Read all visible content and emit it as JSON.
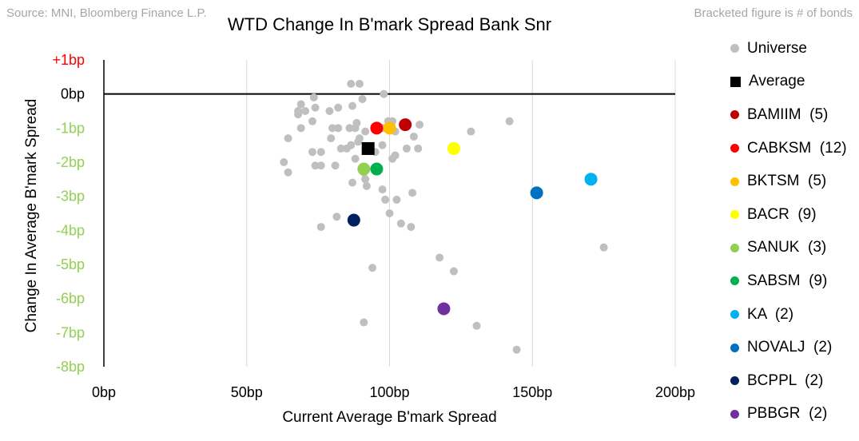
{
  "source_text": "Source: MNI, Bloomberg Finance L.P.",
  "note_text": "Bracketed figure is # of bonds",
  "chart_data": {
    "type": "scatter",
    "title": "WTD Change In B'mark Spread Bank Snr",
    "xlabel": "Current Average B'mark Spread",
    "ylabel": "Change In Average B'mark Spread",
    "xlim": [
      0,
      200
    ],
    "ylim": [
      -8,
      1
    ],
    "x_ticks": [
      {
        "value": 0,
        "label": "0bp"
      },
      {
        "value": 50,
        "label": "50bp"
      },
      {
        "value": 100,
        "label": "100bp"
      },
      {
        "value": 150,
        "label": "150bp"
      },
      {
        "value": 200,
        "label": "200bp"
      }
    ],
    "y_ticks": [
      {
        "value": 1,
        "label": "+1bp",
        "color": "#ff0000"
      },
      {
        "value": 0,
        "label": "0bp",
        "color": "#000000"
      },
      {
        "value": -1,
        "label": "-1bp",
        "color": "#92d050"
      },
      {
        "value": -2,
        "label": "-2bp",
        "color": "#92d050"
      },
      {
        "value": -3,
        "label": "-3bp",
        "color": "#92d050"
      },
      {
        "value": -4,
        "label": "-4bp",
        "color": "#92d050"
      },
      {
        "value": -5,
        "label": "-5bp",
        "color": "#92d050"
      },
      {
        "value": -6,
        "label": "-6bp",
        "color": "#92d050"
      },
      {
        "value": -7,
        "label": "-7bp",
        "color": "#92d050"
      },
      {
        "value": -8,
        "label": "-8bp",
        "color": "#92d050"
      }
    ],
    "grid": "vertical",
    "legend_position": "right",
    "series": [
      {
        "name": "Universe",
        "color": "#bfbfbf",
        "marker": "circle-small",
        "points": [
          [
            86.5,
            0.3
          ],
          [
            89.5,
            0.3
          ],
          [
            98,
            0
          ],
          [
            73.5,
            -0.1
          ],
          [
            69,
            -0.3
          ],
          [
            82,
            -0.4
          ],
          [
            87,
            -0.35
          ],
          [
            90.5,
            -0.15
          ],
          [
            68,
            -0.5
          ],
          [
            70.5,
            -0.5
          ],
          [
            74,
            -0.4
          ],
          [
            79,
            -0.5
          ],
          [
            68,
            -0.6
          ],
          [
            73,
            -0.8
          ],
          [
            88.5,
            -0.85
          ],
          [
            99.5,
            -0.8
          ],
          [
            101,
            -0.8
          ],
          [
            110.5,
            -0.9
          ],
          [
            142,
            -0.8
          ],
          [
            128.5,
            -1.1
          ],
          [
            69,
            -1
          ],
          [
            80,
            -1
          ],
          [
            82,
            -1
          ],
          [
            86,
            -1
          ],
          [
            88,
            -1
          ],
          [
            91.5,
            -1.1
          ],
          [
            97.5,
            -1
          ],
          [
            102,
            -1.1
          ],
          [
            108.5,
            -1.25
          ],
          [
            64.5,
            -1.3
          ],
          [
            79.5,
            -1.3
          ],
          [
            89.5,
            -1.3
          ],
          [
            89,
            -1.4
          ],
          [
            86.5,
            -1.5
          ],
          [
            85,
            -1.6
          ],
          [
            83,
            -1.6
          ],
          [
            73,
            -1.7
          ],
          [
            76,
            -1.7
          ],
          [
            88,
            -1.9
          ],
          [
            95,
            -1.7
          ],
          [
            97.5,
            -1.5
          ],
          [
            101,
            -1.9
          ],
          [
            102,
            -1.8
          ],
          [
            106,
            -1.6
          ],
          [
            110,
            -1.6
          ],
          [
            63,
            -2
          ],
          [
            64.5,
            -2.3
          ],
          [
            74,
            -2.1
          ],
          [
            76,
            -2.1
          ],
          [
            81,
            -2.1
          ],
          [
            91,
            -2.3
          ],
          [
            91.5,
            -2.5
          ],
          [
            92,
            -2.7
          ],
          [
            87,
            -2.6
          ],
          [
            97.5,
            -2.8
          ],
          [
            108,
            -2.9
          ],
          [
            98.5,
            -3.1
          ],
          [
            102.5,
            -3.1
          ],
          [
            81.5,
            -3.6
          ],
          [
            100,
            -3.5
          ],
          [
            104,
            -3.8
          ],
          [
            107.5,
            -3.9
          ],
          [
            76,
            -3.9
          ],
          [
            117.5,
            -4.8
          ],
          [
            122.5,
            -5.2
          ],
          [
            94,
            -5.1
          ],
          [
            175,
            -4.5
          ],
          [
            91,
            -6.7
          ],
          [
            130.5,
            -6.8
          ],
          [
            144.5,
            -7.5
          ]
        ]
      },
      {
        "name": "Average",
        "color": "#000000",
        "marker": "square",
        "points": [
          [
            92.5,
            -1.6
          ]
        ]
      },
      {
        "name": "BAMIIM",
        "count": "(5)",
        "color": "#c00000",
        "marker": "circle",
        "points": [
          [
            105.5,
            -0.9
          ]
        ]
      },
      {
        "name": "CABKSM",
        "count": "(12)",
        "color": "#ff0000",
        "marker": "circle",
        "points": [
          [
            95.5,
            -1
          ]
        ]
      },
      {
        "name": "BKTSM",
        "count": "(5)",
        "color": "#ffc000",
        "marker": "circle",
        "points": [
          [
            100,
            -1
          ]
        ]
      },
      {
        "name": "BACR",
        "count": "(9)",
        "color": "#ffff00",
        "marker": "circle",
        "points": [
          [
            122.5,
            -1.6
          ]
        ]
      },
      {
        "name": "SANUK",
        "count": "(3)",
        "color": "#92d050",
        "marker": "circle",
        "points": [
          [
            91,
            -2.2
          ]
        ]
      },
      {
        "name": "SABSM",
        "count": "(9)",
        "color": "#00b050",
        "marker": "circle",
        "points": [
          [
            95.5,
            -2.2
          ]
        ]
      },
      {
        "name": "KA",
        "count": "(2)",
        "color": "#00b0f0",
        "marker": "circle",
        "points": [
          [
            170.5,
            -2.5
          ]
        ]
      },
      {
        "name": "NOVALJ",
        "count": "(2)",
        "color": "#0070c0",
        "marker": "circle",
        "points": [
          [
            151.5,
            -2.9
          ]
        ]
      },
      {
        "name": "BCPPL",
        "count": "(2)",
        "color": "#002060",
        "marker": "circle",
        "points": [
          [
            87.5,
            -3.7
          ]
        ]
      },
      {
        "name": "PBBGR",
        "count": "(2)",
        "color": "#7030a0",
        "marker": "circle",
        "points": [
          [
            119,
            -6.3
          ]
        ]
      }
    ]
  }
}
